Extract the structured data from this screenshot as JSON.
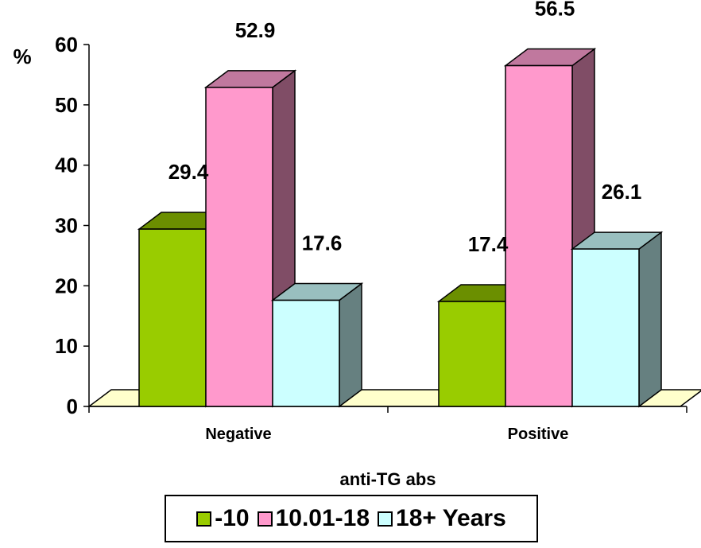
{
  "chart_data": {
    "type": "bar",
    "ylabel": "%",
    "xlabel": "anti-TG abs",
    "categories": [
      "Negative",
      "Positive"
    ],
    "ylim": [
      0,
      60
    ],
    "yticks": [
      "0",
      "10",
      "20",
      "30",
      "40",
      "50",
      "60"
    ],
    "series": [
      {
        "name": "-10",
        "values": [
          29.4,
          17.4
        ],
        "color": "#99cc00",
        "top_color": "#6b8f00",
        "side_color": "#5a7800"
      },
      {
        "name": "10.01-18",
        "values": [
          52.9,
          56.5
        ],
        "color": "#ff99cc",
        "top_color": "#c0789e",
        "side_color": "#804d66"
      },
      {
        "name": "18+ Years",
        "values": [
          17.6,
          26.1
        ],
        "color": "#ccffff",
        "top_color": "#99bfbf",
        "side_color": "#668080"
      }
    ],
    "data_labels": [
      [
        "29.4",
        "17.4"
      ],
      [
        "52.9",
        "56.5"
      ],
      [
        "17.6",
        "26.1"
      ]
    ],
    "floor_color": "#ffffcc",
    "grid": false,
    "legend_position": "bottom"
  }
}
